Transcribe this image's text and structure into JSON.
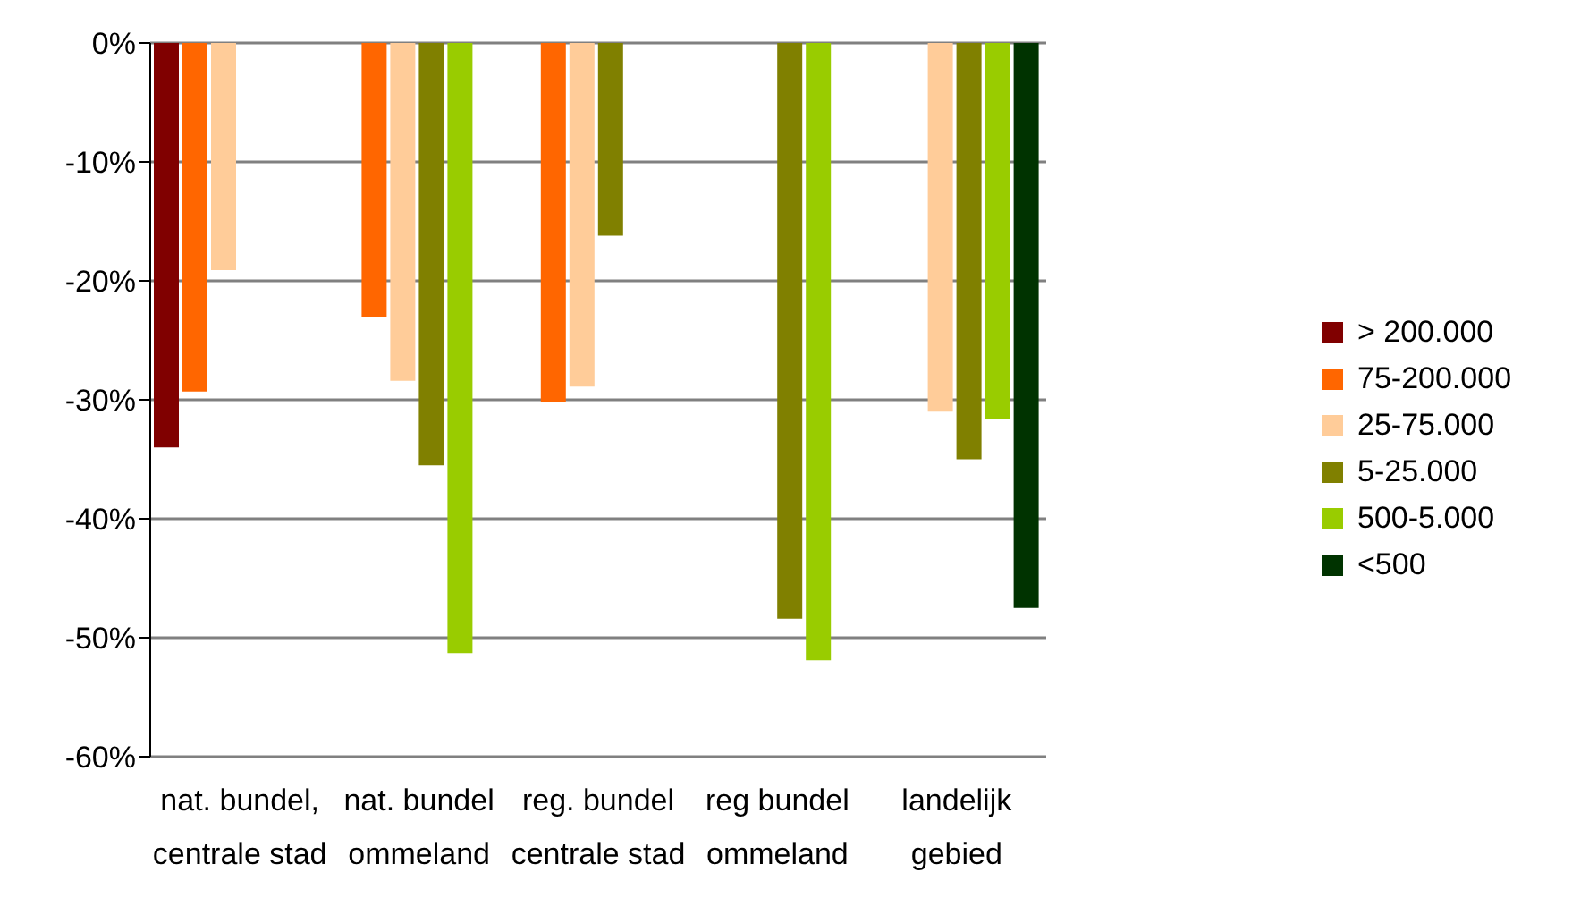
{
  "chart_data": {
    "type": "bar",
    "categories": [
      "nat. bundel, centrale stad",
      "nat. bundel ommeland",
      "reg. bundel centrale stad",
      "reg bundel ommeland",
      "landelijk gebied"
    ],
    "series": [
      {
        "name": "> 200.000",
        "color": "#800000",
        "values": [
          -34,
          null,
          null,
          null,
          null
        ]
      },
      {
        "name": "75-200.000",
        "color": "#ff6600",
        "values": [
          -29.3,
          -23,
          -30.2,
          null,
          null
        ]
      },
      {
        "name": "25-75.000",
        "color": "#ffcc99",
        "values": [
          -19.1,
          -28.4,
          -28.9,
          null,
          -31
        ]
      },
      {
        "name": "5-25.000",
        "color": "#808000",
        "values": [
          null,
          -35.5,
          -16.2,
          -48.4,
          -35
        ]
      },
      {
        "name": "500-5.000",
        "color": "#99cc00",
        "values": [
          null,
          -51.3,
          null,
          -51.9,
          -31.6
        ]
      },
      {
        "name": "<500",
        "color": "#003300",
        "values": [
          null,
          null,
          null,
          null,
          -47.5
        ]
      }
    ],
    "ylim": [
      -60,
      0
    ],
    "yticks": [
      {
        "value": -60,
        "label": "-60%"
      },
      {
        "value": -50,
        "label": "-50%"
      },
      {
        "value": -40,
        "label": "-40%"
      },
      {
        "value": -30,
        "label": "-30%"
      },
      {
        "value": -20,
        "label": "-20%"
      },
      {
        "value": -10,
        "label": "-10%"
      },
      {
        "value": 0,
        "label": "0%"
      }
    ],
    "grid": "y",
    "legend": "right"
  }
}
